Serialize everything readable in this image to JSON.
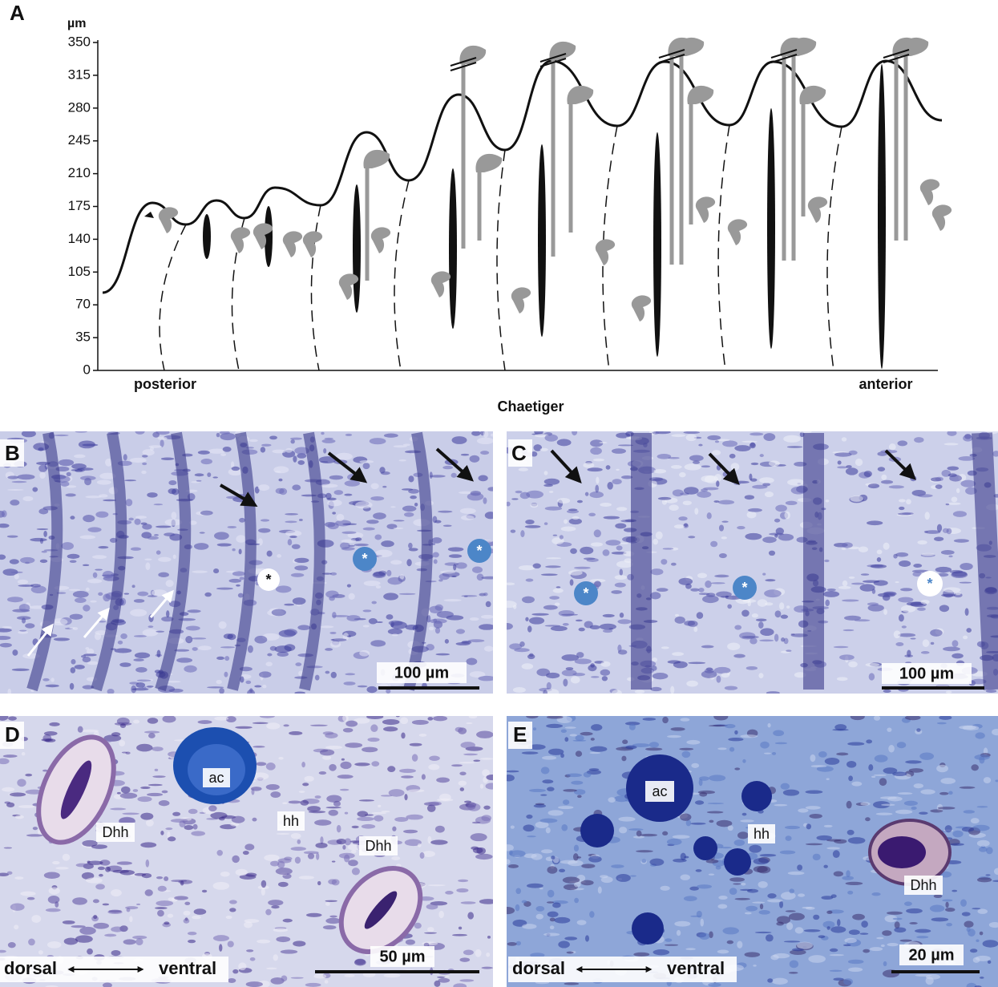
{
  "panel_a": {
    "label": "A",
    "unit": "µm",
    "ylim": [
      0,
      350
    ],
    "yticks": [
      0,
      35,
      70,
      105,
      140,
      175,
      210,
      245,
      280,
      315,
      350
    ],
    "left_label": "posterior",
    "right_label": "anterior",
    "xlabel": "Chaetiger"
  },
  "panel_b": {
    "label": "B",
    "asterisks": [
      "*",
      "*",
      "*"
    ],
    "scale_bar": "100 µm"
  },
  "panel_c": {
    "label": "C",
    "asterisks": [
      "*",
      "*",
      "*"
    ],
    "scale_bar": "100 µm"
  },
  "panel_d": {
    "label": "D",
    "tags": [
      "ac",
      "hh",
      "Dhh",
      "Dhh"
    ],
    "dorsal": "dorsal",
    "ventral": "ventral",
    "scale_bar": "50 µm"
  },
  "panel_e": {
    "label": "E",
    "tags": [
      "ac",
      "hh",
      "Dhh"
    ],
    "dorsal": "dorsal",
    "ventral": "ventral",
    "scale_bar": "20 µm"
  }
}
